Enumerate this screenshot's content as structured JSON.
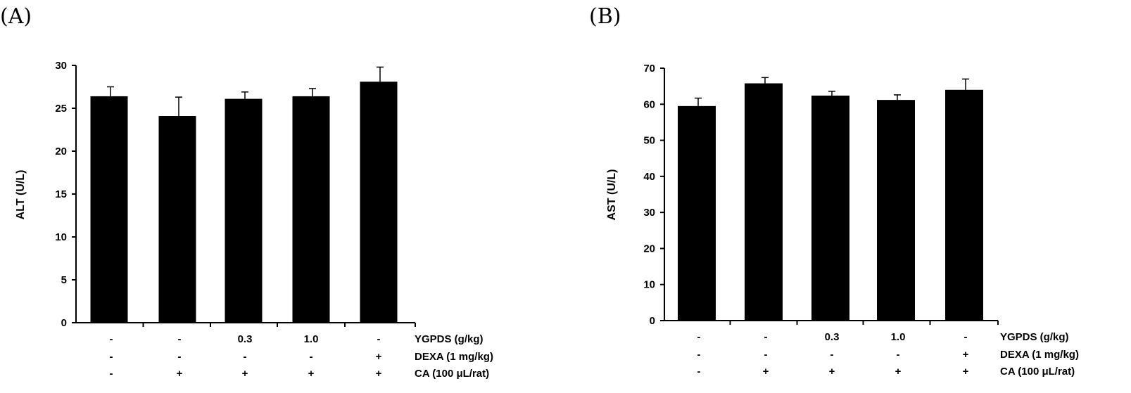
{
  "chart_data": [
    {
      "type": "bar",
      "panel_label": "(A)",
      "ylabel": "ALT (U/L)",
      "ylim": [
        0,
        30
      ],
      "yticks": [
        0,
        5,
        10,
        15,
        20,
        25,
        30
      ],
      "values": [
        26.4,
        24.1,
        26.1,
        26.4,
        28.1
      ],
      "errors": [
        1.1,
        2.2,
        0.8,
        0.9,
        1.7
      ],
      "bar_color": "#000000",
      "treatments": [
        {
          "label": "YGPDS (g/kg)",
          "values": [
            "-",
            "-",
            "0.3",
            "1.0",
            "-"
          ]
        },
        {
          "label": "DEXA (1 mg/kg)",
          "values": [
            "-",
            "-",
            "-",
            "-",
            "+"
          ]
        },
        {
          "label": "CA (100 μL/rat)",
          "values": [
            "-",
            "+",
            "+",
            "+",
            "+"
          ]
        }
      ]
    },
    {
      "type": "bar",
      "panel_label": "(B)",
      "ylabel": "AST (U/L)",
      "ylim": [
        0,
        70
      ],
      "yticks": [
        0,
        10,
        20,
        30,
        40,
        50,
        60,
        70
      ],
      "values": [
        59.5,
        65.8,
        62.4,
        61.2,
        64.0
      ],
      "errors": [
        2.2,
        1.6,
        1.2,
        1.4,
        3.0
      ],
      "bar_color": "#000000",
      "treatments": [
        {
          "label": "YGPDS (g/kg)",
          "values": [
            "-",
            "-",
            "0.3",
            "1.0",
            "-"
          ]
        },
        {
          "label": "DEXA (1 mg/kg)",
          "values": [
            "-",
            "-",
            "-",
            "-",
            "+"
          ]
        },
        {
          "label": "CA (100 μL/rat)",
          "values": [
            "-",
            "+",
            "+",
            "+",
            "+"
          ]
        }
      ]
    }
  ]
}
